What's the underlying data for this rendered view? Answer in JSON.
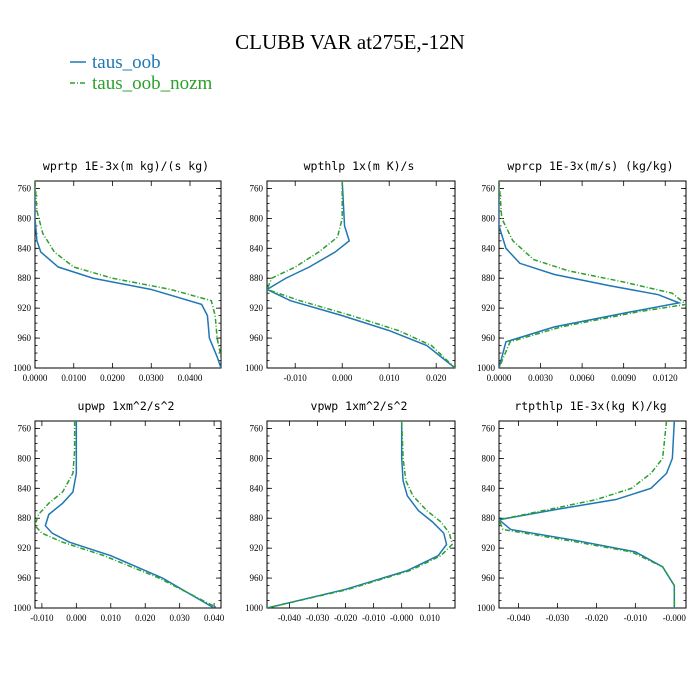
{
  "title": "CLUBB VAR at275E,-12N",
  "legend": [
    {
      "label": "taus_oob",
      "color": "#1f77b4",
      "dash": "solid"
    },
    {
      "label": "taus_oob_nozm",
      "color": "#2ca02c",
      "dash": "dashdot"
    }
  ],
  "chart_data": [
    {
      "type": "line",
      "title": "wprtp  1E-3x(m kg)/(s kg)",
      "xlim": [
        0.0,
        0.048
      ],
      "ylim": [
        1000,
        750
      ],
      "xticks": [
        0.0,
        0.01,
        0.02,
        0.03,
        0.04
      ],
      "xtick_labels": [
        "0.0000",
        "0.0100",
        "0.0200",
        "0.0300",
        "0.0400"
      ],
      "yticks": [
        760,
        800,
        840,
        880,
        920,
        960,
        1000
      ],
      "series": [
        {
          "name": "taus_oob",
          "x": [
            0.0,
            0.0,
            0.0005,
            0.0015,
            0.006,
            0.015,
            0.03,
            0.043,
            0.0445,
            0.045,
            0.047,
            0.048
          ],
          "y": [
            750,
            800,
            830,
            845,
            865,
            880,
            895,
            915,
            930,
            960,
            985,
            1000
          ]
        },
        {
          "name": "taus_oob_nozm",
          "x": [
            0.0,
            0.0005,
            0.002,
            0.005,
            0.01,
            0.02,
            0.035,
            0.0455,
            0.0465,
            0.047,
            0.048,
            0.0485
          ],
          "y": [
            750,
            790,
            820,
            845,
            865,
            880,
            895,
            910,
            930,
            960,
            985,
            1000
          ]
        }
      ]
    },
    {
      "type": "line",
      "title": "wpthlp  1x(m K)/s",
      "xlim": [
        -0.016,
        0.024
      ],
      "ylim": [
        1000,
        750
      ],
      "xticks": [
        -0.01,
        0.0,
        0.01,
        0.02
      ],
      "xtick_labels": [
        "-0.010",
        "0.000",
        "0.010",
        "0.020"
      ],
      "yticks": [
        760,
        800,
        840,
        880,
        920,
        960,
        1000
      ],
      "series": [
        {
          "name": "taus_oob",
          "x": [
            0.0,
            0.0005,
            0.0015,
            -0.0015,
            -0.007,
            -0.012,
            -0.016,
            -0.011,
            0.0,
            0.01,
            0.018,
            0.024
          ],
          "y": [
            750,
            810,
            830,
            845,
            865,
            880,
            895,
            910,
            930,
            950,
            970,
            1000
          ]
        },
        {
          "name": "taus_oob_nozm",
          "x": [
            0.0,
            0.0,
            -0.001,
            -0.005,
            -0.01,
            -0.015,
            -0.016,
            -0.009,
            0.002,
            0.012,
            0.019,
            0.024
          ],
          "y": [
            750,
            800,
            825,
            845,
            865,
            880,
            895,
            910,
            930,
            950,
            970,
            1000
          ]
        }
      ]
    },
    {
      "type": "line",
      "title": "wprcp  1E-3x(m/s) (kg/kg)",
      "xlim": [
        0.0,
        0.0135
      ],
      "ylim": [
        1000,
        750
      ],
      "xticks": [
        0.0,
        0.003,
        0.006,
        0.009,
        0.012
      ],
      "xtick_labels": [
        "0.0000",
        "0.0030",
        "0.0060",
        "0.0090",
        "0.0120"
      ],
      "yticks": [
        760,
        800,
        840,
        880,
        920,
        960,
        1000
      ],
      "series": [
        {
          "name": "taus_oob",
          "x": [
            0.0,
            0.0,
            0.0005,
            0.0015,
            0.004,
            0.008,
            0.0115,
            0.013,
            0.0095,
            0.004,
            0.0005,
            0.0
          ],
          "y": [
            750,
            810,
            840,
            860,
            875,
            890,
            902,
            913,
            925,
            945,
            965,
            1000
          ]
        },
        {
          "name": "taus_oob_nozm",
          "x": [
            0.0,
            0.0002,
            0.001,
            0.0025,
            0.005,
            0.009,
            0.0125,
            0.0135,
            0.01,
            0.0045,
            0.0008,
            0.0
          ],
          "y": [
            750,
            800,
            830,
            855,
            870,
            885,
            900,
            915,
            925,
            945,
            965,
            1000
          ]
        }
      ]
    },
    {
      "type": "line",
      "title": "upwp  1xm^2/s^2",
      "xlim": [
        -0.012,
        0.042
      ],
      "ylim": [
        1000,
        750
      ],
      "xticks": [
        -0.01,
        0.0,
        0.01,
        0.02,
        0.03,
        0.04
      ],
      "xtick_labels": [
        "-0.010",
        "0.000",
        "0.010",
        "0.020",
        "0.030",
        "0.040"
      ],
      "yticks": [
        760,
        800,
        840,
        880,
        920,
        960,
        1000
      ],
      "series": [
        {
          "name": "taus_oob",
          "x": [
            0.0,
            0.0,
            0.0,
            -0.001,
            -0.004,
            -0.008,
            -0.009,
            -0.007,
            -0.002,
            0.01,
            0.025,
            0.04
          ],
          "y": [
            750,
            790,
            820,
            845,
            860,
            875,
            890,
            900,
            912,
            930,
            960,
            1000
          ]
        },
        {
          "name": "taus_oob_nozm",
          "x": [
            -0.0005,
            -0.0005,
            -0.001,
            -0.004,
            -0.008,
            -0.011,
            -0.012,
            -0.01,
            -0.004,
            0.008,
            0.024,
            0.041
          ],
          "y": [
            750,
            790,
            820,
            845,
            860,
            875,
            890,
            900,
            912,
            930,
            960,
            1000
          ]
        }
      ]
    },
    {
      "type": "line",
      "title": "vpwp  1xm^2/s^2",
      "xlim": [
        -0.048,
        0.019
      ],
      "ylim": [
        1000,
        750
      ],
      "xticks": [
        -0.04,
        -0.03,
        -0.02,
        -0.01,
        0.0,
        0.01
      ],
      "xtick_labels": [
        "-0.040",
        "-0.030",
        "-0.020",
        "-0.010",
        "-0.000",
        "0.010"
      ],
      "yticks": [
        760,
        800,
        840,
        880,
        920,
        960,
        1000
      ],
      "series": [
        {
          "name": "taus_oob",
          "x": [
            0.0,
            0.0,
            0.0005,
            0.002,
            0.006,
            0.011,
            0.015,
            0.016,
            0.013,
            0.002,
            -0.02,
            -0.048
          ],
          "y": [
            750,
            800,
            830,
            850,
            870,
            885,
            900,
            915,
            930,
            950,
            975,
            1000
          ]
        },
        {
          "name": "taus_oob_nozm",
          "x": [
            0.0,
            0.0005,
            0.0015,
            0.004,
            0.009,
            0.014,
            0.017,
            0.018,
            0.014,
            0.003,
            -0.019,
            -0.048
          ],
          "y": [
            750,
            800,
            830,
            850,
            870,
            885,
            900,
            915,
            930,
            950,
            975,
            1000
          ]
        }
      ]
    },
    {
      "type": "line",
      "title": "rtpthlp  1E-3x(kg K)/kg",
      "xlim": [
        -0.045,
        0.003
      ],
      "ylim": [
        1000,
        750
      ],
      "xticks": [
        -0.04,
        -0.03,
        -0.02,
        -0.01,
        0.0
      ],
      "xtick_labels": [
        "-0.040",
        "-0.030",
        "-0.020",
        "-0.010",
        "-0.000"
      ],
      "yticks": [
        760,
        800,
        840,
        880,
        920,
        960,
        1000
      ],
      "series": [
        {
          "name": "taus_oob",
          "x": [
            0.0,
            -0.0005,
            -0.002,
            -0.006,
            -0.015,
            -0.03,
            -0.045,
            -0.042,
            -0.025,
            -0.01,
            -0.003,
            0.0,
            0.0
          ],
          "y": [
            750,
            800,
            820,
            840,
            855,
            868,
            882,
            895,
            910,
            925,
            945,
            970,
            1000
          ]
        },
        {
          "name": "taus_oob_nozm",
          "x": [
            -0.002,
            -0.003,
            -0.006,
            -0.011,
            -0.02,
            -0.032,
            -0.045,
            -0.044,
            -0.027,
            -0.011,
            -0.003,
            0.0,
            0.0
          ],
          "y": [
            750,
            800,
            820,
            840,
            855,
            868,
            882,
            895,
            910,
            925,
            945,
            970,
            1000
          ]
        }
      ]
    }
  ]
}
